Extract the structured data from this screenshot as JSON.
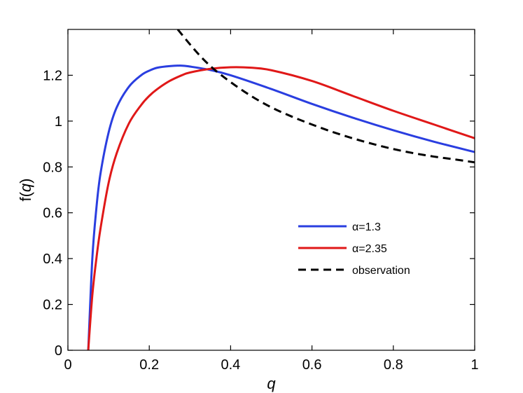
{
  "chart_data": {
    "type": "line",
    "xlabel": "q",
    "ylabel": "f(q)",
    "xlim": [
      0,
      1
    ],
    "ylim": [
      0,
      1.4
    ],
    "xticks": [
      0,
      0.2,
      0.4,
      0.6,
      0.8,
      1
    ],
    "xtick_labels": [
      "0",
      "0.2",
      "0.4",
      "0.6",
      "0.8",
      "1"
    ],
    "yticks": [
      0,
      0.2,
      0.4,
      0.6,
      0.8,
      1,
      1.2
    ],
    "ytick_labels": [
      "0",
      "0.2",
      "0.4",
      "0.6",
      "0.8",
      "1",
      "1.2"
    ],
    "grid": false,
    "legend_position": "lower-right",
    "series": [
      {
        "name": "α=1.3",
        "color": "#2a3ee0",
        "style": "solid",
        "x": [
          0.05,
          0.06,
          0.07,
          0.08,
          0.1,
          0.12,
          0.15,
          0.18,
          0.2,
          0.22,
          0.25,
          0.28,
          0.3,
          0.35,
          0.4,
          0.5,
          0.6,
          0.7,
          0.8,
          0.9,
          1.0
        ],
        "y": [
          0.0,
          0.4,
          0.62,
          0.77,
          0.95,
          1.06,
          1.15,
          1.2,
          1.22,
          1.233,
          1.24,
          1.242,
          1.238,
          1.223,
          1.2,
          1.14,
          1.075,
          1.015,
          0.96,
          0.91,
          0.865
        ]
      },
      {
        "name": "α=2.35",
        "color": "#e01818",
        "style": "solid",
        "x": [
          0.05,
          0.06,
          0.07,
          0.08,
          0.1,
          0.12,
          0.15,
          0.18,
          0.2,
          0.22,
          0.25,
          0.28,
          0.3,
          0.35,
          0.4,
          0.45,
          0.5,
          0.6,
          0.7,
          0.8,
          0.9,
          1.0
        ],
        "y": [
          0.0,
          0.24,
          0.4,
          0.53,
          0.73,
          0.86,
          0.99,
          1.07,
          1.11,
          1.14,
          1.175,
          1.2,
          1.212,
          1.228,
          1.235,
          1.233,
          1.222,
          1.175,
          1.11,
          1.045,
          0.985,
          0.925
        ]
      },
      {
        "name": "observation",
        "color": "#000000",
        "style": "dashed",
        "x": [
          0.27,
          0.3,
          0.33,
          0.36,
          0.4,
          0.45,
          0.5,
          0.55,
          0.6,
          0.65,
          0.7,
          0.75,
          0.8,
          0.85,
          0.9,
          0.95,
          1.0
        ],
        "y": [
          1.4,
          1.335,
          1.275,
          1.225,
          1.17,
          1.11,
          1.06,
          1.02,
          0.985,
          0.953,
          0.925,
          0.9,
          0.878,
          0.86,
          0.845,
          0.833,
          0.82
        ]
      }
    ]
  }
}
